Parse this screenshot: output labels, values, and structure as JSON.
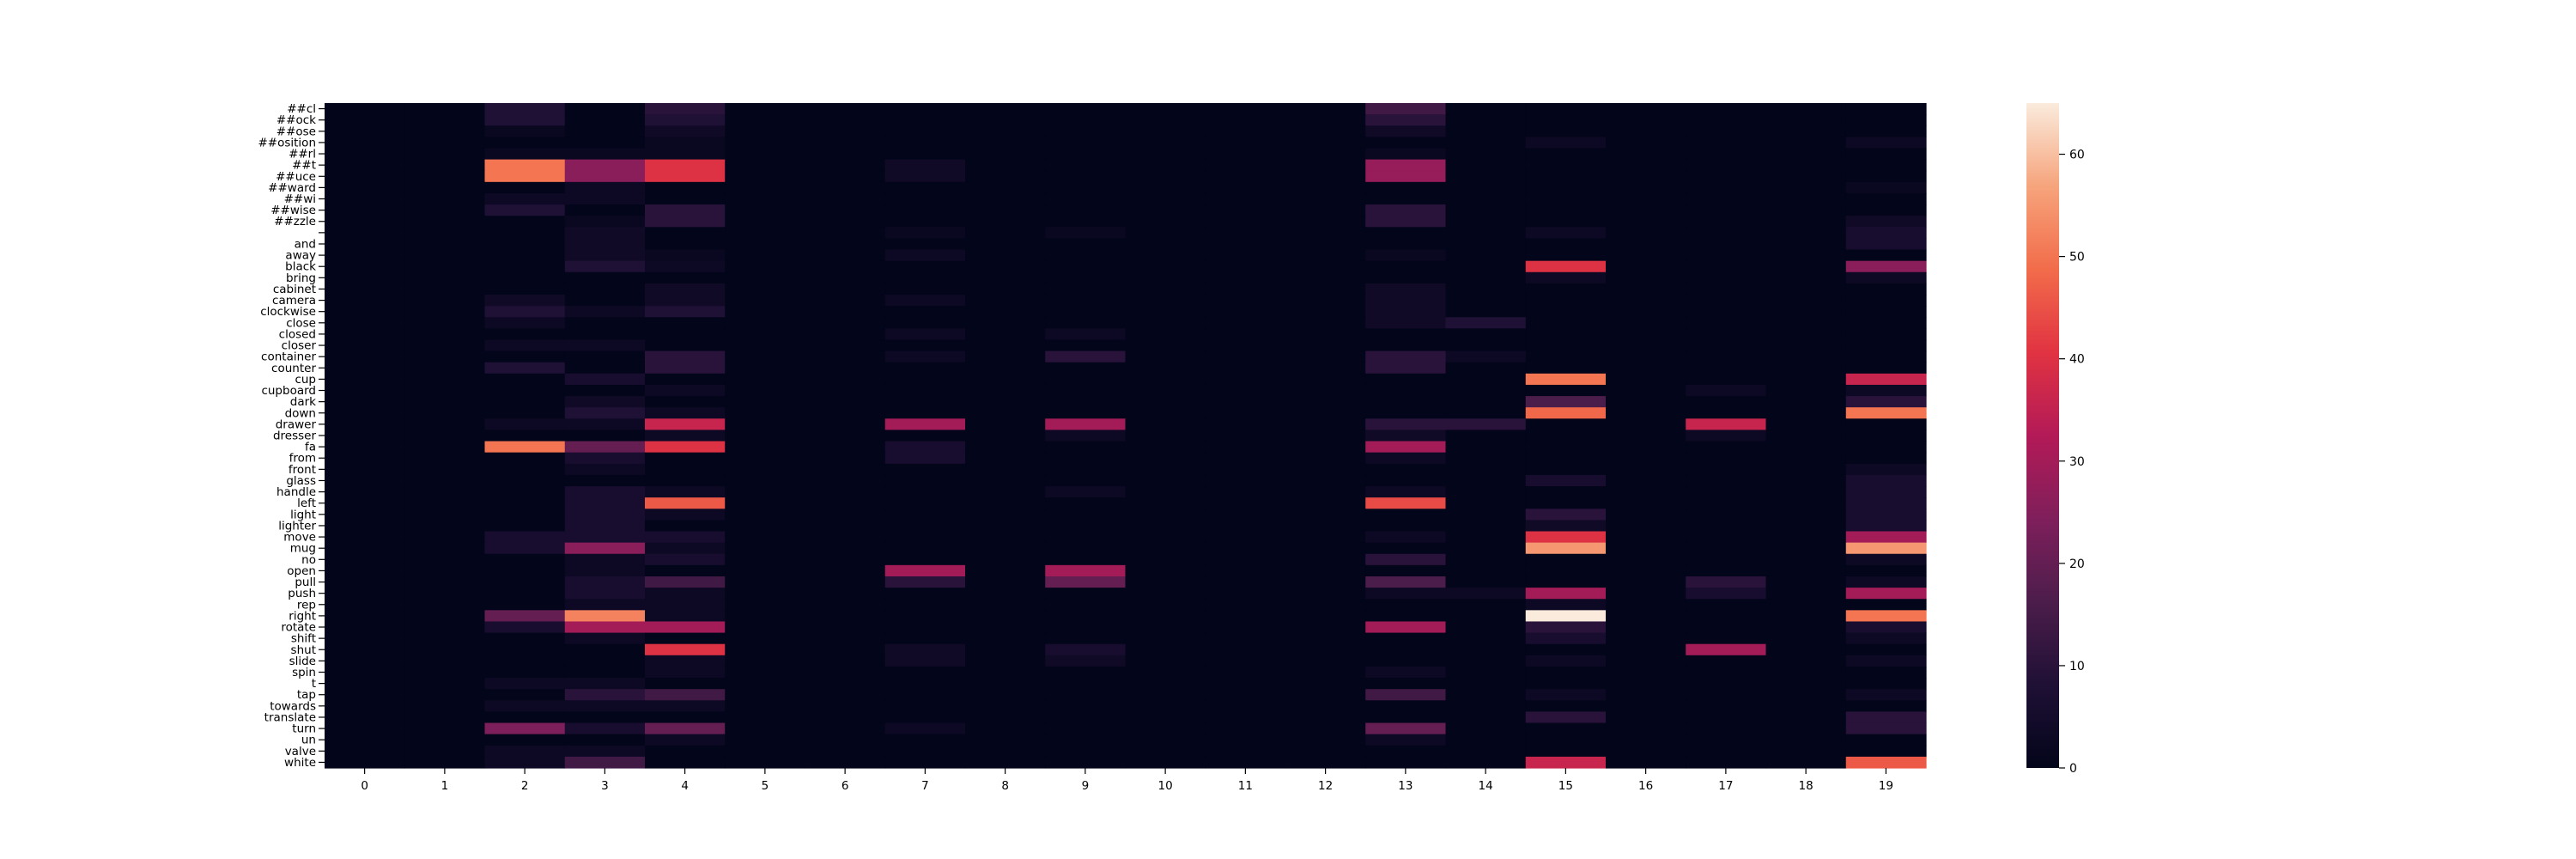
{
  "chart_data": {
    "type": "heatmap",
    "title": "",
    "xlabel": "",
    "ylabel": "",
    "x_labels": [
      "0",
      "1",
      "2",
      "3",
      "4",
      "5",
      "6",
      "7",
      "8",
      "9",
      "10",
      "11",
      "12",
      "13",
      "14",
      "15",
      "16",
      "17",
      "18",
      "19"
    ],
    "y_labels": [
      "##cl",
      "##ock",
      "##ose",
      "##osition",
      "##rl",
      "##t",
      "##uce",
      "##ward",
      "##wi",
      "##wise",
      "##zzle",
      "",
      "and",
      "away",
      "black",
      "bring",
      "cabinet",
      "camera",
      "clockwise",
      "close",
      "closed",
      "closer",
      "container",
      "counter",
      "cup",
      "cupboard",
      "dark",
      "down",
      "drawer",
      "dresser",
      "fa",
      "from",
      "front",
      "glass",
      "handle",
      "left",
      "light",
      "lighter",
      "move",
      "mug",
      "no",
      "open",
      "pull",
      "push",
      "rep",
      "right",
      "rotate",
      "shift",
      "shut",
      "slide",
      "spin",
      "t",
      "tap",
      "towards",
      "translate",
      "turn",
      "un",
      "valve",
      "white"
    ],
    "colorbar": {
      "min": 0,
      "max": 65,
      "ticks": [
        0,
        10,
        20,
        30,
        40,
        50,
        60
      ],
      "stops": [
        "#03051a",
        "#1f1035",
        "#4c1d4b",
        "#7f1f5b",
        "#b31a57",
        "#e13342",
        "#f26c4a",
        "#f6a47c",
        "#faebdd"
      ]
    },
    "values": [
      [
        0,
        0,
        8,
        0,
        10,
        0,
        0,
        0,
        0,
        0,
        0,
        0,
        0,
        14,
        0,
        0,
        0,
        0,
        0,
        0
      ],
      [
        0,
        0,
        8,
        0,
        8,
        0,
        0,
        0,
        0,
        0,
        0,
        0,
        0,
        10,
        0,
        0,
        0,
        0,
        0,
        0
      ],
      [
        0,
        0,
        2,
        0,
        4,
        0,
        0,
        0,
        0,
        0,
        0,
        0,
        0,
        4,
        0,
        0,
        0,
        0,
        0,
        0
      ],
      [
        0,
        0,
        0,
        0,
        2,
        0,
        0,
        0,
        0,
        0,
        0,
        0,
        0,
        0,
        0,
        3,
        0,
        0,
        0,
        3
      ],
      [
        0,
        0,
        2,
        2,
        2,
        0,
        0,
        0,
        0,
        0,
        0,
        0,
        0,
        2,
        0,
        0,
        0,
        0,
        0,
        0
      ],
      [
        0,
        0,
        50,
        26,
        40,
        0,
        0,
        4,
        0,
        0,
        0,
        0,
        0,
        28,
        0,
        0,
        0,
        0,
        0,
        0
      ],
      [
        0,
        0,
        50,
        26,
        40,
        0,
        0,
        4,
        0,
        0,
        0,
        0,
        0,
        28,
        0,
        0,
        0,
        0,
        0,
        0
      ],
      [
        0,
        0,
        0,
        3,
        0,
        0,
        0,
        0,
        0,
        0,
        0,
        0,
        0,
        0,
        0,
        0,
        0,
        0,
        0,
        2
      ],
      [
        0,
        0,
        3,
        3,
        0,
        0,
        0,
        0,
        0,
        0,
        0,
        0,
        0,
        0,
        0,
        0,
        0,
        0,
        0,
        0
      ],
      [
        0,
        0,
        8,
        0,
        10,
        0,
        0,
        0,
        0,
        0,
        0,
        0,
        0,
        10,
        0,
        0,
        0,
        0,
        0,
        0
      ],
      [
        0,
        0,
        0,
        2,
        10,
        0,
        0,
        0,
        0,
        0,
        0,
        0,
        0,
        10,
        0,
        0,
        0,
        0,
        0,
        4
      ],
      [
        0,
        0,
        0,
        4,
        0,
        0,
        0,
        2,
        0,
        2,
        0,
        0,
        0,
        0,
        0,
        3,
        0,
        0,
        0,
        6
      ],
      [
        0,
        0,
        0,
        4,
        0,
        0,
        0,
        0,
        0,
        0,
        0,
        0,
        0,
        0,
        0,
        0,
        0,
        0,
        0,
        6
      ],
      [
        0,
        0,
        0,
        4,
        2,
        0,
        0,
        3,
        0,
        0,
        0,
        0,
        0,
        2,
        0,
        0,
        0,
        0,
        0,
        0
      ],
      [
        0,
        0,
        0,
        8,
        3,
        0,
        0,
        0,
        0,
        0,
        0,
        0,
        0,
        0,
        0,
        40,
        0,
        0,
        0,
        26
      ],
      [
        0,
        0,
        0,
        0,
        0,
        0,
        0,
        0,
        0,
        0,
        0,
        0,
        0,
        0,
        0,
        3,
        0,
        0,
        0,
        3
      ],
      [
        0,
        0,
        0,
        0,
        4,
        0,
        0,
        0,
        0,
        0,
        0,
        0,
        0,
        4,
        0,
        0,
        0,
        0,
        0,
        0
      ],
      [
        0,
        0,
        4,
        0,
        4,
        0,
        0,
        3,
        0,
        0,
        0,
        0,
        0,
        4,
        0,
        0,
        0,
        0,
        0,
        0
      ],
      [
        0,
        0,
        8,
        3,
        8,
        0,
        0,
        0,
        0,
        0,
        0,
        0,
        0,
        4,
        0,
        0,
        0,
        0,
        0,
        0
      ],
      [
        0,
        0,
        3,
        0,
        0,
        0,
        0,
        0,
        0,
        0,
        0,
        0,
        0,
        4,
        8,
        0,
        0,
        0,
        0,
        0
      ],
      [
        0,
        0,
        0,
        0,
        0,
        0,
        0,
        3,
        0,
        3,
        0,
        0,
        0,
        0,
        0,
        0,
        0,
        0,
        0,
        0
      ],
      [
        0,
        0,
        3,
        3,
        0,
        0,
        0,
        0,
        0,
        0,
        0,
        0,
        0,
        0,
        0,
        0,
        0,
        0,
        0,
        0
      ],
      [
        0,
        0,
        0,
        0,
        10,
        0,
        0,
        3,
        0,
        10,
        0,
        0,
        0,
        10,
        3,
        0,
        0,
        0,
        0,
        0
      ],
      [
        0,
        0,
        8,
        0,
        10,
        0,
        0,
        0,
        0,
        0,
        0,
        0,
        0,
        10,
        0,
        0,
        0,
        0,
        0,
        0
      ],
      [
        0,
        0,
        0,
        6,
        0,
        0,
        0,
        0,
        0,
        0,
        0,
        0,
        0,
        0,
        0,
        50,
        0,
        0,
        0,
        36
      ],
      [
        0,
        0,
        0,
        0,
        3,
        0,
        0,
        0,
        0,
        0,
        0,
        0,
        0,
        0,
        0,
        0,
        0,
        3,
        0,
        3
      ],
      [
        0,
        0,
        0,
        4,
        0,
        0,
        0,
        0,
        0,
        0,
        0,
        0,
        0,
        0,
        0,
        16,
        0,
        0,
        0,
        10
      ],
      [
        0,
        0,
        0,
        8,
        3,
        0,
        0,
        0,
        0,
        0,
        0,
        0,
        0,
        0,
        0,
        48,
        0,
        0,
        0,
        50
      ],
      [
        0,
        0,
        3,
        3,
        36,
        0,
        0,
        30,
        0,
        30,
        0,
        0,
        0,
        10,
        10,
        0,
        0,
        36,
        0,
        0
      ],
      [
        0,
        0,
        0,
        0,
        3,
        0,
        0,
        0,
        0,
        3,
        0,
        0,
        0,
        4,
        0,
        0,
        0,
        3,
        0,
        0
      ],
      [
        0,
        0,
        50,
        20,
        40,
        0,
        0,
        6,
        0,
        0,
        0,
        0,
        0,
        30,
        0,
        0,
        0,
        0,
        0,
        0
      ],
      [
        0,
        0,
        0,
        6,
        0,
        0,
        0,
        6,
        0,
        0,
        0,
        0,
        0,
        3,
        0,
        0,
        0,
        0,
        0,
        0
      ],
      [
        0,
        0,
        0,
        3,
        0,
        0,
        0,
        0,
        0,
        0,
        0,
        0,
        0,
        0,
        0,
        0,
        0,
        0,
        0,
        3
      ],
      [
        0,
        0,
        0,
        0,
        0,
        0,
        0,
        0,
        0,
        0,
        0,
        0,
        0,
        0,
        0,
        6,
        0,
        0,
        0,
        6
      ],
      [
        0,
        0,
        0,
        6,
        3,
        0,
        0,
        0,
        0,
        3,
        0,
        0,
        0,
        3,
        0,
        0,
        0,
        0,
        0,
        6
      ],
      [
        0,
        0,
        0,
        6,
        46,
        0,
        0,
        0,
        0,
        0,
        0,
        0,
        0,
        44,
        0,
        0,
        0,
        0,
        0,
        6
      ],
      [
        0,
        0,
        0,
        6,
        3,
        0,
        0,
        0,
        0,
        0,
        0,
        0,
        0,
        0,
        0,
        10,
        0,
        0,
        0,
        6
      ],
      [
        0,
        0,
        0,
        6,
        0,
        0,
        0,
        0,
        0,
        0,
        0,
        0,
        0,
        0,
        0,
        4,
        0,
        0,
        0,
        6
      ],
      [
        0,
        0,
        6,
        6,
        6,
        0,
        0,
        0,
        0,
        0,
        0,
        0,
        0,
        3,
        0,
        40,
        0,
        0,
        0,
        30
      ],
      [
        0,
        0,
        6,
        26,
        3,
        0,
        0,
        0,
        0,
        0,
        0,
        0,
        0,
        0,
        0,
        55,
        0,
        0,
        0,
        55
      ],
      [
        0,
        0,
        0,
        3,
        6,
        0,
        0,
        0,
        0,
        0,
        0,
        0,
        0,
        10,
        0,
        0,
        0,
        0,
        0,
        3
      ],
      [
        0,
        0,
        0,
        3,
        0,
        0,
        0,
        30,
        0,
        30,
        0,
        0,
        0,
        0,
        0,
        0,
        0,
        0,
        0,
        0
      ],
      [
        0,
        0,
        0,
        6,
        14,
        0,
        0,
        10,
        0,
        20,
        0,
        0,
        0,
        16,
        0,
        0,
        0,
        10,
        0,
        3
      ],
      [
        0,
        0,
        0,
        6,
        3,
        0,
        0,
        0,
        0,
        0,
        0,
        0,
        0,
        3,
        3,
        30,
        0,
        6,
        0,
        30
      ],
      [
        0,
        0,
        0,
        3,
        3,
        0,
        0,
        0,
        0,
        0,
        0,
        0,
        0,
        0,
        0,
        3,
        0,
        0,
        0,
        0
      ],
      [
        0,
        0,
        20,
        52,
        3,
        0,
        0,
        0,
        0,
        0,
        0,
        0,
        0,
        0,
        0,
        65,
        0,
        0,
        0,
        50
      ],
      [
        0,
        0,
        6,
        30,
        30,
        0,
        0,
        0,
        0,
        0,
        0,
        0,
        0,
        30,
        0,
        10,
        0,
        0,
        0,
        6
      ],
      [
        0,
        0,
        0,
        3,
        0,
        0,
        0,
        0,
        0,
        0,
        0,
        0,
        0,
        0,
        0,
        6,
        0,
        0,
        0,
        3
      ],
      [
        0,
        0,
        0,
        0,
        40,
        0,
        0,
        4,
        0,
        6,
        0,
        0,
        0,
        0,
        0,
        0,
        0,
        30,
        0,
        0
      ],
      [
        0,
        0,
        0,
        0,
        3,
        0,
        0,
        4,
        0,
        4,
        0,
        0,
        0,
        0,
        0,
        3,
        0,
        0,
        0,
        3
      ],
      [
        0,
        0,
        0,
        0,
        3,
        0,
        0,
        0,
        0,
        0,
        0,
        0,
        0,
        3,
        0,
        0,
        0,
        0,
        0,
        0
      ],
      [
        0,
        0,
        3,
        3,
        0,
        0,
        0,
        0,
        0,
        0,
        0,
        0,
        0,
        0,
        0,
        0,
        0,
        0,
        0,
        0
      ],
      [
        0,
        0,
        0,
        10,
        14,
        0,
        0,
        0,
        0,
        0,
        0,
        0,
        0,
        14,
        0,
        3,
        0,
        0,
        0,
        3
      ],
      [
        0,
        0,
        3,
        3,
        3,
        0,
        0,
        0,
        0,
        0,
        0,
        0,
        0,
        0,
        0,
        0,
        0,
        0,
        0,
        0
      ],
      [
        0,
        0,
        0,
        0,
        0,
        0,
        0,
        0,
        0,
        0,
        0,
        0,
        0,
        0,
        0,
        10,
        0,
        0,
        0,
        10
      ],
      [
        0,
        0,
        24,
        6,
        20,
        0,
        0,
        3,
        0,
        0,
        0,
        0,
        0,
        20,
        0,
        0,
        0,
        0,
        0,
        10
      ],
      [
        0,
        0,
        0,
        0,
        3,
        0,
        0,
        0,
        0,
        0,
        0,
        0,
        0,
        3,
        0,
        0,
        0,
        0,
        0,
        0
      ],
      [
        0,
        0,
        3,
        3,
        0,
        0,
        0,
        0,
        0,
        0,
        0,
        0,
        0,
        0,
        0,
        0,
        0,
        0,
        0,
        0
      ],
      [
        0,
        0,
        3,
        14,
        0,
        0,
        0,
        0,
        0,
        0,
        0,
        0,
        0,
        0,
        0,
        36,
        0,
        0,
        0,
        46
      ]
    ]
  }
}
